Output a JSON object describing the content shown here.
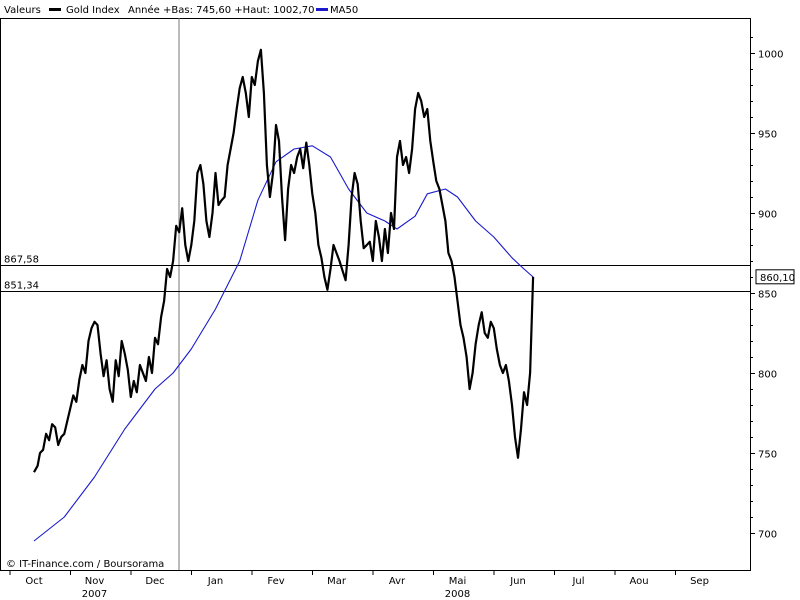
{
  "chart_data": {
    "type": "line",
    "legend": {
      "header": "Valeurs",
      "placement": "top-left",
      "items": [
        {
          "name": "Gold Index",
          "color": "#000000",
          "stats": "Année +Bas: 745,60 +Haut: 1002,70"
        },
        {
          "name": "MA50",
          "color": "#1a1acc"
        }
      ]
    },
    "ylim": [
      680,
      1020
    ],
    "y_axis_position": "right",
    "yticks": [
      700,
      750,
      800,
      850,
      900,
      950,
      1000
    ],
    "ytick_labels": [
      "700",
      "750",
      "800",
      "850",
      "900",
      "950",
      "1000"
    ],
    "x_months": [
      "Oct",
      "Nov",
      "Dec",
      "Jan",
      "Fev",
      "Mar",
      "Avr",
      "Mai",
      "Jun",
      "Jul",
      "Aou",
      "Sep"
    ],
    "x_years": [
      {
        "label": "2007",
        "month_index": 1
      },
      {
        "label": "2008",
        "month_index": 7
      }
    ],
    "year_divider_between": [
      "Dec",
      "Jan"
    ],
    "horizontal_levels": [
      {
        "value": 867.58,
        "label": "867,58"
      },
      {
        "value": 851.34,
        "label": "851,34"
      }
    ],
    "last_value": {
      "value": 860.1,
      "label": "860,10"
    },
    "grid": false,
    "series": [
      {
        "name": "Gold Index",
        "color": "#000000",
        "points": [
          [
            0.0,
            738
          ],
          [
            0.06,
            742
          ],
          [
            0.1,
            750
          ],
          [
            0.15,
            752
          ],
          [
            0.2,
            762
          ],
          [
            0.25,
            758
          ],
          [
            0.3,
            768
          ],
          [
            0.35,
            766
          ],
          [
            0.4,
            755
          ],
          [
            0.45,
            760
          ],
          [
            0.5,
            762
          ],
          [
            0.55,
            770
          ],
          [
            0.6,
            778
          ],
          [
            0.65,
            786
          ],
          [
            0.7,
            782
          ],
          [
            0.75,
            796
          ],
          [
            0.8,
            805
          ],
          [
            0.85,
            800
          ],
          [
            0.9,
            820
          ],
          [
            0.95,
            828
          ],
          [
            1.0,
            832
          ],
          [
            1.05,
            830
          ],
          [
            1.1,
            812
          ],
          [
            1.15,
            798
          ],
          [
            1.2,
            808
          ],
          [
            1.25,
            790
          ],
          [
            1.3,
            782
          ],
          [
            1.35,
            808
          ],
          [
            1.4,
            798
          ],
          [
            1.45,
            820
          ],
          [
            1.5,
            812
          ],
          [
            1.55,
            802
          ],
          [
            1.6,
            785
          ],
          [
            1.65,
            795
          ],
          [
            1.7,
            788
          ],
          [
            1.75,
            805
          ],
          [
            1.8,
            800
          ],
          [
            1.85,
            795
          ],
          [
            1.9,
            810
          ],
          [
            1.95,
            800
          ],
          [
            2.0,
            822
          ],
          [
            2.05,
            818
          ],
          [
            2.1,
            835
          ],
          [
            2.15,
            845
          ],
          [
            2.2,
            865
          ],
          [
            2.25,
            860
          ],
          [
            2.3,
            870
          ],
          [
            2.35,
            892
          ],
          [
            2.4,
            888
          ],
          [
            2.45,
            903
          ],
          [
            2.5,
            880
          ],
          [
            2.55,
            870
          ],
          [
            2.6,
            880
          ],
          [
            2.65,
            895
          ],
          [
            2.7,
            925
          ],
          [
            2.75,
            930
          ],
          [
            2.8,
            918
          ],
          [
            2.85,
            895
          ],
          [
            2.9,
            885
          ],
          [
            2.95,
            900
          ],
          [
            3.0,
            925
          ],
          [
            3.05,
            905
          ],
          [
            3.1,
            908
          ],
          [
            3.15,
            910
          ],
          [
            3.2,
            930
          ],
          [
            3.25,
            940
          ],
          [
            3.3,
            950
          ],
          [
            3.35,
            965
          ],
          [
            3.4,
            978
          ],
          [
            3.45,
            985
          ],
          [
            3.5,
            975
          ],
          [
            3.55,
            960
          ],
          [
            3.6,
            985
          ],
          [
            3.65,
            980
          ],
          [
            3.7,
            995
          ],
          [
            3.75,
            1002
          ],
          [
            3.8,
            975
          ],
          [
            3.85,
            930
          ],
          [
            3.9,
            910
          ],
          [
            3.95,
            925
          ],
          [
            4.0,
            955
          ],
          [
            4.05,
            945
          ],
          [
            4.1,
            910
          ],
          [
            4.15,
            883
          ],
          [
            4.2,
            915
          ],
          [
            4.25,
            930
          ],
          [
            4.3,
            925
          ],
          [
            4.35,
            935
          ],
          [
            4.4,
            940
          ],
          [
            4.45,
            928
          ],
          [
            4.5,
            944
          ],
          [
            4.55,
            930
          ],
          [
            4.6,
            912
          ],
          [
            4.65,
            900
          ],
          [
            4.7,
            880
          ],
          [
            4.75,
            872
          ],
          [
            4.8,
            860
          ],
          [
            4.85,
            852
          ],
          [
            4.9,
            865
          ],
          [
            4.95,
            880
          ],
          [
            5.0,
            875
          ],
          [
            5.05,
            870
          ],
          [
            5.1,
            864
          ],
          [
            5.15,
            858
          ],
          [
            5.2,
            880
          ],
          [
            5.25,
            910
          ],
          [
            5.3,
            925
          ],
          [
            5.35,
            918
          ],
          [
            5.4,
            895
          ],
          [
            5.45,
            878
          ],
          [
            5.5,
            880
          ],
          [
            5.55,
            882
          ],
          [
            5.6,
            870
          ],
          [
            5.65,
            895
          ],
          [
            5.7,
            885
          ],
          [
            5.75,
            870
          ],
          [
            5.8,
            890
          ],
          [
            5.85,
            875
          ],
          [
            5.9,
            900
          ],
          [
            5.95,
            890
          ],
          [
            6.0,
            935
          ],
          [
            6.05,
            945
          ],
          [
            6.1,
            930
          ],
          [
            6.15,
            935
          ],
          [
            6.2,
            925
          ],
          [
            6.25,
            940
          ],
          [
            6.3,
            965
          ],
          [
            6.35,
            975
          ],
          [
            6.4,
            970
          ],
          [
            6.45,
            960
          ],
          [
            6.5,
            965
          ],
          [
            6.55,
            945
          ],
          [
            6.6,
            932
          ],
          [
            6.65,
            920
          ],
          [
            6.7,
            915
          ],
          [
            6.75,
            905
          ],
          [
            6.8,
            895
          ],
          [
            6.85,
            875
          ],
          [
            6.9,
            870
          ],
          [
            6.95,
            860
          ],
          [
            7.0,
            845
          ],
          [
            7.05,
            830
          ],
          [
            7.1,
            822
          ],
          [
            7.15,
            810
          ],
          [
            7.2,
            790
          ],
          [
            7.25,
            800
          ],
          [
            7.3,
            818
          ],
          [
            7.35,
            830
          ],
          [
            7.4,
            838
          ],
          [
            7.45,
            825
          ],
          [
            7.5,
            822
          ],
          [
            7.55,
            832
          ],
          [
            7.6,
            828
          ],
          [
            7.65,
            815
          ],
          [
            7.7,
            805
          ],
          [
            7.75,
            800
          ],
          [
            7.8,
            805
          ],
          [
            7.85,
            795
          ],
          [
            7.9,
            780
          ],
          [
            7.95,
            760
          ],
          [
            8.0,
            747
          ],
          [
            8.05,
            765
          ],
          [
            8.1,
            788
          ],
          [
            8.15,
            780
          ],
          [
            8.2,
            800
          ],
          [
            8.25,
            860.1
          ]
        ]
      },
      {
        "name": "MA50",
        "color": "#1a1acc",
        "points": [
          [
            0.0,
            695
          ],
          [
            0.5,
            710
          ],
          [
            1.0,
            735
          ],
          [
            1.5,
            765
          ],
          [
            2.0,
            790
          ],
          [
            2.3,
            800
          ],
          [
            2.6,
            815
          ],
          [
            3.0,
            840
          ],
          [
            3.4,
            870
          ],
          [
            3.7,
            908
          ],
          [
            4.0,
            932
          ],
          [
            4.3,
            940
          ],
          [
            4.6,
            942
          ],
          [
            4.9,
            935
          ],
          [
            5.2,
            915
          ],
          [
            5.5,
            900
          ],
          [
            5.8,
            895
          ],
          [
            6.0,
            890
          ],
          [
            6.3,
            898
          ],
          [
            6.5,
            912
          ],
          [
            6.8,
            915
          ],
          [
            7.0,
            910
          ],
          [
            7.3,
            895
          ],
          [
            7.6,
            885
          ],
          [
            7.9,
            872
          ],
          [
            8.1,
            865
          ],
          [
            8.25,
            860
          ]
        ]
      }
    ]
  },
  "credit": "© IT-Finance.com / Boursorama"
}
